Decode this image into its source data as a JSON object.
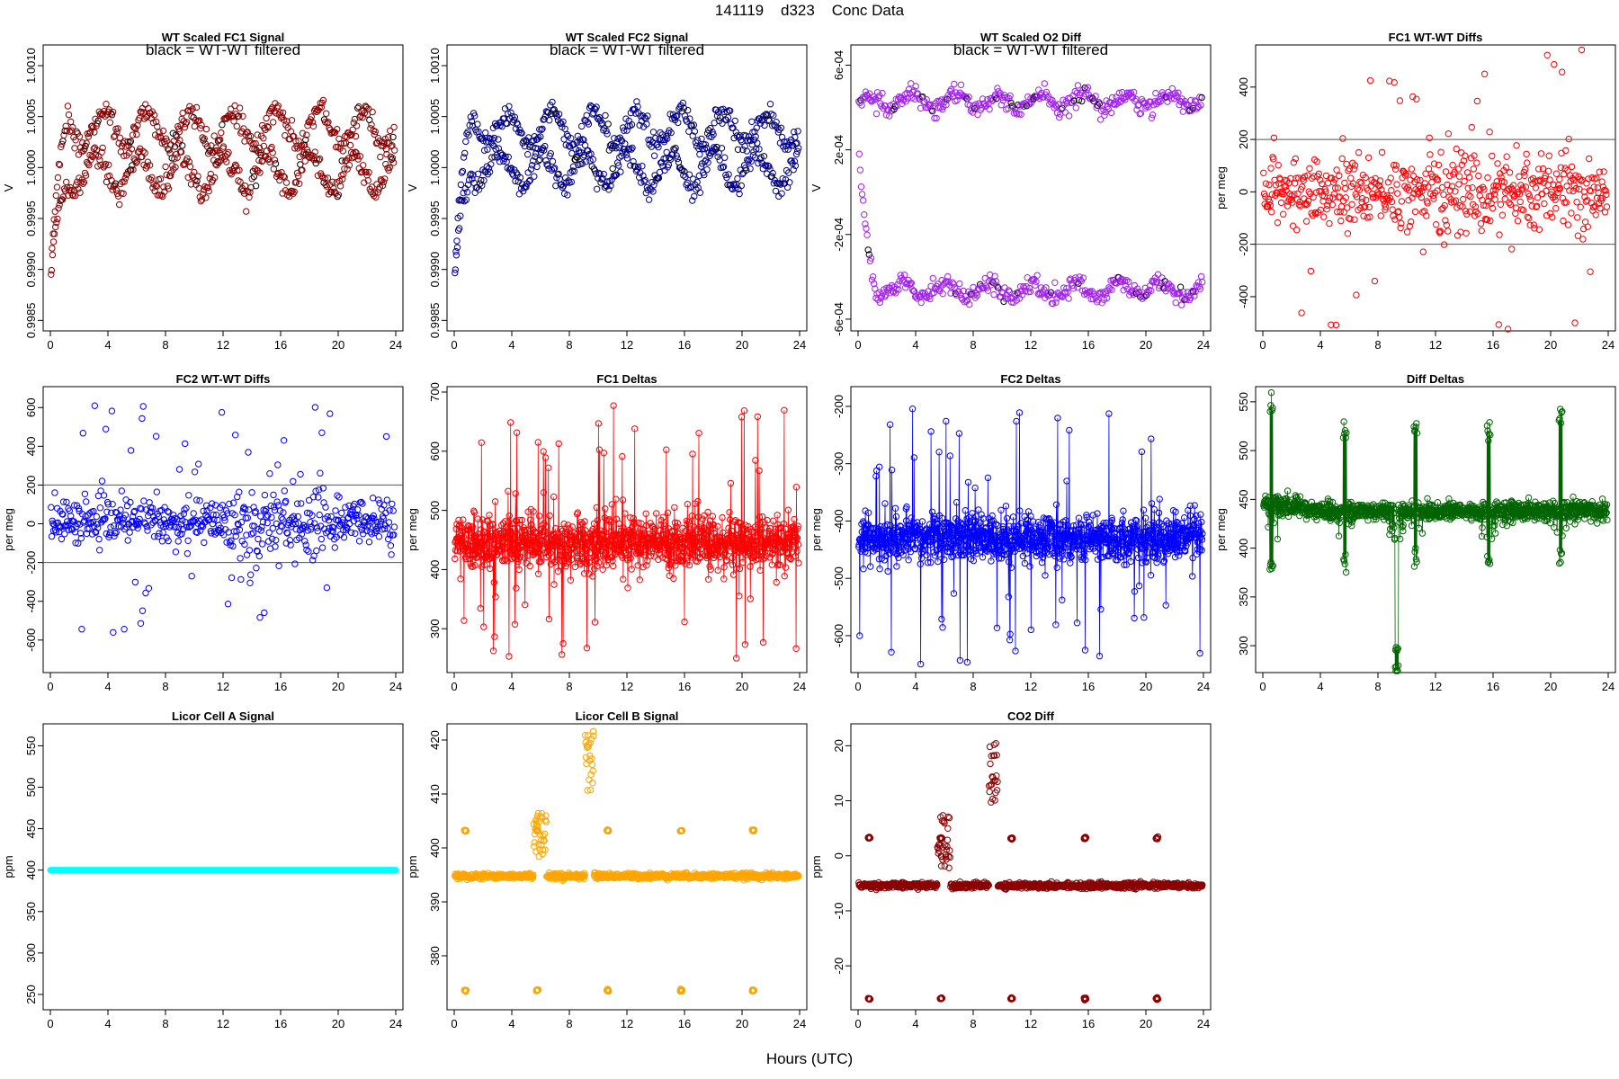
{
  "page": {
    "title": "141119    d323    Conc Data",
    "x_axis_label": "Hours (UTC)"
  },
  "chart_data": [
    {
      "type": "scatter",
      "title": "WT Scaled FC1 Signal",
      "note": "black = WT-WT filtered",
      "ylabel": "V",
      "xlim": [
        0,
        24
      ],
      "ylim": [
        0.99845,
        1.00115
      ],
      "yticks": [
        0.9985,
        0.999,
        0.9995,
        1.0,
        1.0005,
        1.001
      ],
      "ytick_labels": [
        "0.9985",
        "0.9990",
        "0.9995",
        "1.0000",
        "1.0005",
        "1.0010"
      ],
      "xticks": [
        0,
        4,
        8,
        12,
        16,
        20,
        24
      ],
      "hlines": [],
      "color": "#8B0000",
      "secondary_color": "#000000",
      "generator": {
        "kind": "bimodal",
        "start": 0.9985,
        "hi": 1.00038,
        "lo": 0.99995,
        "amp": 0.0002,
        "noise": 6e-05,
        "n": 700
      }
    },
    {
      "type": "scatter",
      "title": "WT Scaled FC2 Signal",
      "note": "black = WT-WT filtered",
      "ylabel": "V",
      "xlim": [
        0,
        24
      ],
      "ylim": [
        0.99845,
        1.00115
      ],
      "yticks": [
        0.9985,
        0.999,
        0.9995,
        1.0,
        1.0005,
        1.001
      ],
      "ytick_labels": [
        "0.9985",
        "0.9990",
        "0.9995",
        "1.0000",
        "1.0005",
        "1.0010"
      ],
      "xticks": [
        0,
        4,
        8,
        12,
        16,
        20,
        24
      ],
      "hlines": [],
      "color": "#00008B",
      "secondary_color": "#000000",
      "generator": {
        "kind": "bimodal",
        "start": 0.9985,
        "hi": 1.00038,
        "lo": 0.99998,
        "amp": 0.00018,
        "noise": 6e-05,
        "n": 700
      }
    },
    {
      "type": "scatter",
      "title": "WT Scaled O2 Diff",
      "note": "black = WT-WT filtered",
      "ylabel": "V",
      "xlim": [
        0,
        24
      ],
      "ylim": [
        -0.00063,
        0.00067
      ],
      "yticks": [
        -0.0006,
        -0.0002,
        0.0002,
        0.0006
      ],
      "ytick_labels": [
        "-6e-04",
        "-2e-04",
        "2e-04",
        "6e-04"
      ],
      "xticks": [
        0,
        4,
        8,
        12,
        16,
        20,
        24
      ],
      "hlines": [],
      "color": "#A020F0",
      "secondary_color": "#000000",
      "generator": {
        "kind": "bimodal",
        "start": 0.00043,
        "hi": 0.00043,
        "lo": -0.00046,
        "amp": 4e-05,
        "noise": 2e-05,
        "n": 700
      }
    },
    {
      "type": "scatter",
      "title": "FC1 WT-WT Diffs",
      "ylabel": "per meg",
      "xlim": [
        0,
        24
      ],
      "ylim": [
        -510,
        540
      ],
      "yticks": [
        -400,
        -200,
        0,
        200,
        400
      ],
      "ytick_labels": [
        "-400",
        "-200",
        "0",
        "200",
        "400"
      ],
      "xticks": [
        0,
        4,
        8,
        12,
        16,
        20,
        24
      ],
      "hlines": [
        200,
        -200
      ],
      "color": "#FF0000",
      "generator": {
        "kind": "noise",
        "base": 0,
        "sd": 60,
        "n": 560,
        "outliers": 40,
        "orange": 350
      }
    },
    {
      "type": "scatter",
      "title": "FC2 WT-WT Diffs",
      "ylabel": "per meg",
      "xlim": [
        0,
        24
      ],
      "ylim": [
        -740,
        680
      ],
      "yticks": [
        -600,
        -400,
        -200,
        0,
        200,
        400,
        600
      ],
      "ytick_labels": [
        "-600",
        "-400",
        "-200",
        "0",
        "200",
        "400",
        "600"
      ],
      "xticks": [
        0,
        4,
        8,
        12,
        16,
        20,
        24
      ],
      "hlines": [
        200,
        -200
      ],
      "color": "#0000FF",
      "generator": {
        "kind": "noise",
        "base": 10,
        "sd": 55,
        "n": 560,
        "outliers": 40,
        "orange": 400
      }
    },
    {
      "type": "line",
      "title": "FC1 Deltas",
      "ylabel": "per meg",
      "xlim": [
        0,
        24
      ],
      "ylim": [
        235,
        700
      ],
      "yticks": [
        300,
        400,
        500,
        600,
        700
      ],
      "ytick_labels": [
        "300",
        "400",
        "500",
        "600",
        "700"
      ],
      "xticks": [
        0,
        4,
        8,
        12,
        16,
        20,
        24
      ],
      "hlines": [],
      "color": "#FF0000",
      "generator": {
        "kind": "spiky",
        "base": 445,
        "sd": 22,
        "n": 1100,
        "spike_up": 250,
        "spike_dn": 200
      }
    },
    {
      "type": "line",
      "title": "FC2 Deltas",
      "ylabel": "per meg",
      "xlim": [
        0,
        24
      ],
      "ylim": [
        -655,
        -175
      ],
      "yticks": [
        -600,
        -500,
        -400,
        -300,
        -200
      ],
      "ytick_labels": [
        "-600",
        "-500",
        "-400",
        "-300",
        "-200"
      ],
      "xticks": [
        0,
        4,
        8,
        12,
        16,
        20,
        24
      ],
      "hlines": [],
      "color": "#0000FF",
      "generator": {
        "kind": "spiky",
        "base": -430,
        "sd": 20,
        "n": 1100,
        "spike_up": 250,
        "spike_dn": 220
      }
    },
    {
      "type": "line",
      "title": "Diff Deltas",
      "ylabel": "per meg",
      "xlim": [
        0,
        24
      ],
      "ylim": [
        278,
        560
      ],
      "yticks": [
        300,
        350,
        400,
        450,
        500,
        550
      ],
      "ytick_labels": [
        "300",
        "350",
        "400",
        "450",
        "500",
        "550"
      ],
      "xticks": [
        0,
        4,
        8,
        12,
        16,
        20,
        24
      ],
      "hlines": [],
      "color": "#006400",
      "generator": {
        "kind": "calib",
        "base": 438,
        "sd": 5,
        "n": 1100
      }
    },
    {
      "type": "scatter",
      "title": "Licor Cell A Signal",
      "ylabel": "ppm",
      "xlim": [
        0,
        24
      ],
      "ylim": [
        238,
        570
      ],
      "yticks": [
        250,
        300,
        350,
        400,
        450,
        500,
        550
      ],
      "ytick_labels": [
        "250",
        "300",
        "350",
        "400",
        "450",
        "500",
        "550"
      ],
      "xticks": [
        0,
        4,
        8,
        12,
        16,
        20,
        24
      ],
      "hlines": [],
      "color": "#00FFFF",
      "value": 400
    },
    {
      "type": "scatter",
      "title": "Licor Cell B Signal",
      "ylabel": "ppm",
      "xlim": [
        0,
        24
      ],
      "ylim": [
        371,
        422
      ],
      "yticks": [
        380,
        390,
        400,
        410,
        420
      ],
      "ytick_labels": [
        "380",
        "390",
        "400",
        "410",
        "420"
      ],
      "xticks": [
        0,
        4,
        8,
        12,
        16,
        20,
        24
      ],
      "hlines": [],
      "color": "#FFA500",
      "generator": {
        "kind": "licor",
        "base": 394.8,
        "sd": 0.25,
        "n": 900,
        "hi": 403.2,
        "lo": 373.6
      }
    },
    {
      "type": "scatter",
      "title": "CO2 Diff",
      "ylabel": "ppm",
      "xlim": [
        0,
        24
      ],
      "ylim": [
        -27,
        23
      ],
      "yticks": [
        -20,
        -10,
        0,
        10,
        20
      ],
      "ytick_labels": [
        "-20",
        "-10",
        "0",
        "10",
        "20"
      ],
      "xticks": [
        0,
        4,
        8,
        12,
        16,
        20,
        24
      ],
      "hlines": [],
      "color": "#8B0000",
      "generator": {
        "kind": "licor",
        "base": -5.4,
        "sd": 0.25,
        "n": 900,
        "hi": 3.2,
        "lo": -26
      }
    }
  ]
}
